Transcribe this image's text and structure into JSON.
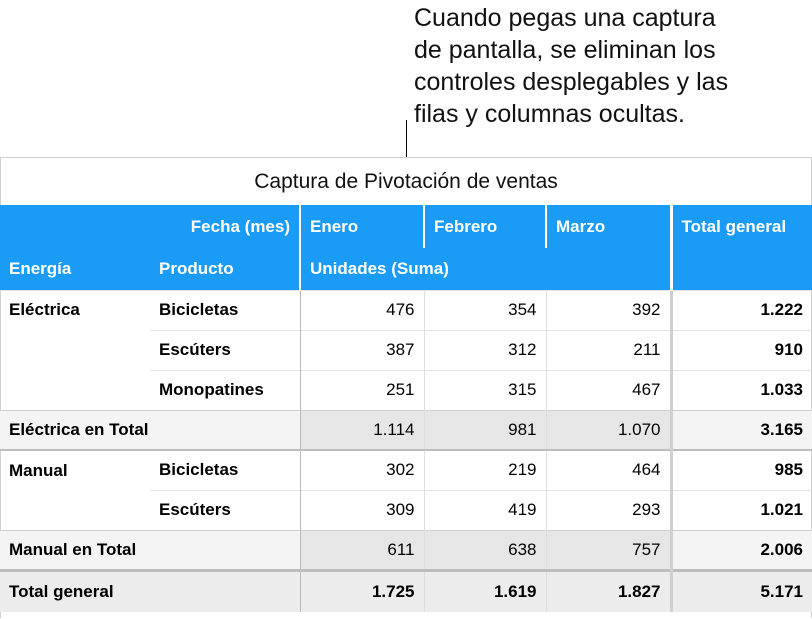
{
  "callout": {
    "lines": [
      "Cuando pegas una captura",
      "de pantalla, se eliminan los",
      "controles desplegables y las",
      "filas y columnas ocultas."
    ]
  },
  "table": {
    "title": "Captura de Pivotación de ventas",
    "header_row1": {
      "label": "Fecha (mes)",
      "months": [
        "Enero",
        "Febrero",
        "Marzo"
      ],
      "total": "Total general"
    },
    "header_row2": {
      "col1": "Energía",
      "col2": "Producto",
      "values_label": "Unidades (Suma)"
    },
    "groups": [
      {
        "energy": "Eléctrica",
        "rows": [
          {
            "product": "Bicicletas",
            "values": [
              "476",
              "354",
              "392"
            ],
            "total": "1.222"
          },
          {
            "product": "Escúters",
            "values": [
              "387",
              "312",
              "211"
            ],
            "total": "910"
          },
          {
            "product": "Monopatines",
            "values": [
              "251",
              "315",
              "467"
            ],
            "total": "1.033"
          }
        ],
        "subtotal": {
          "label": "Eléctrica en Total",
          "values": [
            "1.114",
            "981",
            "1.070"
          ],
          "total": "3.165"
        }
      },
      {
        "energy": "Manual",
        "rows": [
          {
            "product": "Bicicletas",
            "values": [
              "302",
              "219",
              "464"
            ],
            "total": "985"
          },
          {
            "product": "Escúters",
            "values": [
              "309",
              "419",
              "293"
            ],
            "total": "1.021"
          }
        ],
        "subtotal": {
          "label": "Manual en Total",
          "values": [
            "611",
            "638",
            "757"
          ],
          "total": "2.006"
        }
      }
    ],
    "grand_total": {
      "label": "Total general",
      "values": [
        "1.725",
        "1.619",
        "1.827"
      ],
      "total": "5.171"
    }
  },
  "colors": {
    "header": "#1a9cf6",
    "subtotal_bg": "#f4f4f4",
    "grand_bg": "#ececec"
  }
}
